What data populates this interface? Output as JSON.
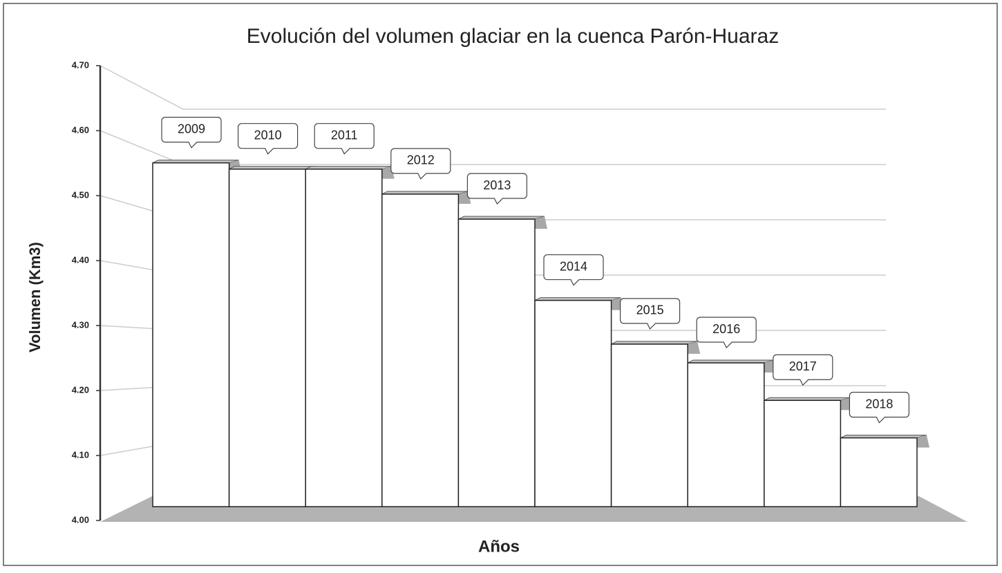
{
  "chart_data": {
    "type": "bar3d",
    "title": "Evolución del volumen glaciar en la cuenca Parón-Huaraz",
    "y_axis_label": "Volumen (Km3)",
    "x_axis_label": "Años",
    "categories": [
      "2009",
      "2010",
      "2011",
      "2012",
      "2013",
      "2014",
      "2015",
      "2016",
      "2017",
      "2018"
    ],
    "values": [
      4.55,
      4.54,
      4.54,
      4.5,
      4.46,
      4.33,
      4.26,
      4.23,
      4.17,
      4.11
    ],
    "color": "#ffffff",
    "ylim": [
      4.0,
      4.7
    ],
    "yticks": [
      {
        "value": 4.0,
        "label": "4.00"
      },
      {
        "value": 4.1,
        "label": "4.10"
      },
      {
        "value": 4.2,
        "label": "4.20"
      },
      {
        "value": 4.3,
        "label": "4.30"
      },
      {
        "value": 4.4,
        "label": "4.40"
      },
      {
        "value": 4.5,
        "label": "4.50"
      },
      {
        "value": 4.6,
        "label": "4.60"
      },
      {
        "value": 4.7,
        "label": "4.70"
      }
    ],
    "grid": true
  }
}
